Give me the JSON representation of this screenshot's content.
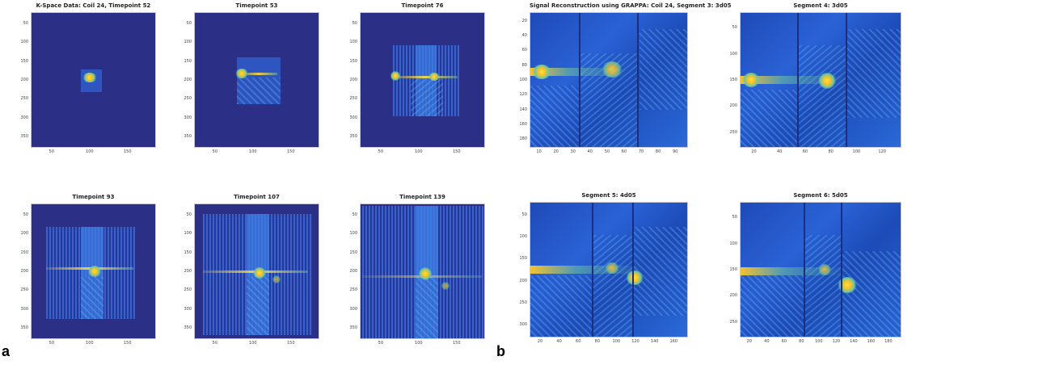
{
  "panel_labels": {
    "a": "a",
    "b": "b"
  },
  "a_panels": [
    {
      "title": "K-Space Data: Coil 24, Timepoint 52",
      "yticks": [
        "50",
        "100",
        "150",
        "200",
        "250",
        "300",
        "350"
      ],
      "xticks": [
        "50",
        "100",
        "150"
      ]
    },
    {
      "title": "Timepoint 53",
      "yticks": [
        "50",
        "100",
        "150",
        "200",
        "250",
        "300",
        "350"
      ],
      "xticks": [
        "50",
        "100",
        "150"
      ]
    },
    {
      "title": "Timepoint 76",
      "yticks": [
        "50",
        "100",
        "150",
        "200",
        "250",
        "300",
        "350"
      ],
      "xticks": [
        "50",
        "100",
        "150"
      ]
    },
    {
      "title": "Timepoint 93",
      "yticks": [
        "50",
        "100",
        "150",
        "200",
        "250",
        "300",
        "350"
      ],
      "xticks": [
        "50",
        "100",
        "150"
      ]
    },
    {
      "title": "Timepoint 107",
      "yticks": [
        "50",
        "100",
        "150",
        "200",
        "250",
        "300",
        "350"
      ],
      "xticks": [
        "50",
        "100",
        "150"
      ]
    },
    {
      "title": "Timepoint 139",
      "yticks": [
        "50",
        "100",
        "150",
        "200",
        "250",
        "300",
        "350"
      ],
      "xticks": [
        "50",
        "100",
        "150"
      ]
    }
  ],
  "b_panels": [
    {
      "title": "Signal Reconstruction using GRAPPA: Coil 24, Segment 3: 3d05",
      "yticks": [
        "20",
        "40",
        "60",
        "80",
        "100",
        "120",
        "140",
        "160",
        "180"
      ],
      "xticks": [
        "10",
        "20",
        "30",
        "40",
        "50",
        "60",
        "70",
        "80",
        "90"
      ]
    },
    {
      "title": "Segment 4: 3d05",
      "yticks": [
        "50",
        "100",
        "150",
        "200",
        "250"
      ],
      "xticks": [
        "20",
        "40",
        "60",
        "80",
        "100",
        "120"
      ]
    },
    {
      "title": "Segment 5: 4d05",
      "yticks": [
        "50",
        "100",
        "150",
        "200",
        "250",
        "300"
      ],
      "xticks": [
        "20",
        "40",
        "60",
        "80",
        "100",
        "120",
        "140",
        "160"
      ]
    },
    {
      "title": "Segment 6: 5d05",
      "yticks": [
        "50",
        "100",
        "150",
        "200",
        "250"
      ],
      "xticks": [
        "20",
        "40",
        "60",
        "80",
        "100",
        "120",
        "140",
        "160",
        "180"
      ]
    }
  ],
  "colors": {
    "background": "#2b2f86",
    "hot": "#ffe23a",
    "mid": "#2f56c0"
  }
}
